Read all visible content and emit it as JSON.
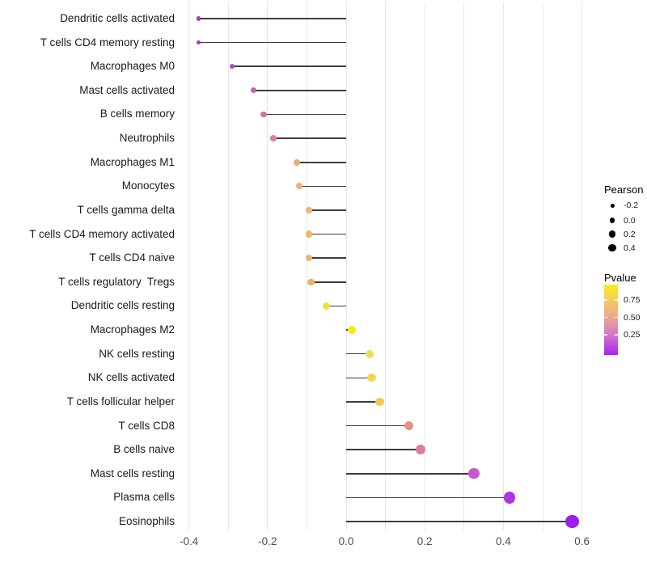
{
  "chart_data": {
    "type": "scatter",
    "subtype": "lollipop",
    "title": "",
    "xlabel": "",
    "ylabel": "",
    "x_tick_labels": [
      "-0.4",
      "-0.2",
      "0.0",
      "0.2",
      "0.4",
      "0.6"
    ],
    "x_tick_values": [
      -0.4,
      -0.2,
      0.0,
      0.2,
      0.4,
      0.6
    ],
    "xlim": [
      -0.424,
      0.624
    ],
    "grid": "vertical gridlines every 0.1, no horizontal gridlines",
    "legend_position": "right",
    "points": [
      {
        "label": "Dendritic cells activated",
        "pearson": -0.375,
        "color": "#a43bc4"
      },
      {
        "label": "T cells CD4 memory resting",
        "pearson": -0.375,
        "color": "#a43bc4"
      },
      {
        "label": "Macrophages M0",
        "pearson": -0.29,
        "color": "#b04cc3"
      },
      {
        "label": "Mast cells activated",
        "pearson": -0.235,
        "color": "#c466ab"
      },
      {
        "label": "B cells memory",
        "pearson": -0.21,
        "color": "#d0719f"
      },
      {
        "label": "Neutrophils",
        "pearson": -0.185,
        "color": "#d98292"
      },
      {
        "label": "Macrophages M1",
        "pearson": -0.125,
        "color": "#ebae70"
      },
      {
        "label": "Monocytes",
        "pearson": -0.12,
        "color": "#ecb172"
      },
      {
        "label": "T cells gamma delta",
        "pearson": -0.095,
        "color": "#edb66c"
      },
      {
        "label": "T cells CD4 memory activated",
        "pearson": -0.095,
        "color": "#edb66c"
      },
      {
        "label": "T cells CD4 naive",
        "pearson": -0.095,
        "color": "#edb66c"
      },
      {
        "label": "T cells regulatory  Tregs",
        "pearson": -0.09,
        "color": "#eab168"
      },
      {
        "label": "Dendritic cells resting",
        "pearson": -0.05,
        "color": "#f2df3e"
      },
      {
        "label": "Macrophages M2",
        "pearson": 0.015,
        "color": "#f5eb1f"
      },
      {
        "label": "NK cells resting",
        "pearson": 0.06,
        "color": "#f0dc52"
      },
      {
        "label": "NK cells activated",
        "pearson": 0.065,
        "color": "#f0d94f"
      },
      {
        "label": "T cells follicular helper",
        "pearson": 0.085,
        "color": "#efc957"
      },
      {
        "label": "T cells CD8",
        "pearson": 0.16,
        "color": "#e29380"
      },
      {
        "label": "B cells naive",
        "pearson": 0.19,
        "color": "#db8099"
      },
      {
        "label": "Mast cells resting",
        "pearson": 0.325,
        "color": "#c558ce"
      },
      {
        "label": "Plasma cells",
        "pearson": 0.415,
        "color": "#ae35e0"
      },
      {
        "label": "Eosinophils",
        "pearson": 0.575,
        "color": "#9a20e8"
      }
    ],
    "legend_size": {
      "title": "Pearson",
      "entries": [
        "-0.2",
        "0.0",
        "0.2",
        "0.4"
      ],
      "dot_color": "#000000"
    },
    "legend_color": {
      "title": "Pvalue",
      "ticks": [
        "0.75",
        "0.50",
        "0.25"
      ],
      "top_color": "#f9ec1c",
      "mid_color": "#e495a8",
      "bottom_color": "#a524f2"
    }
  }
}
